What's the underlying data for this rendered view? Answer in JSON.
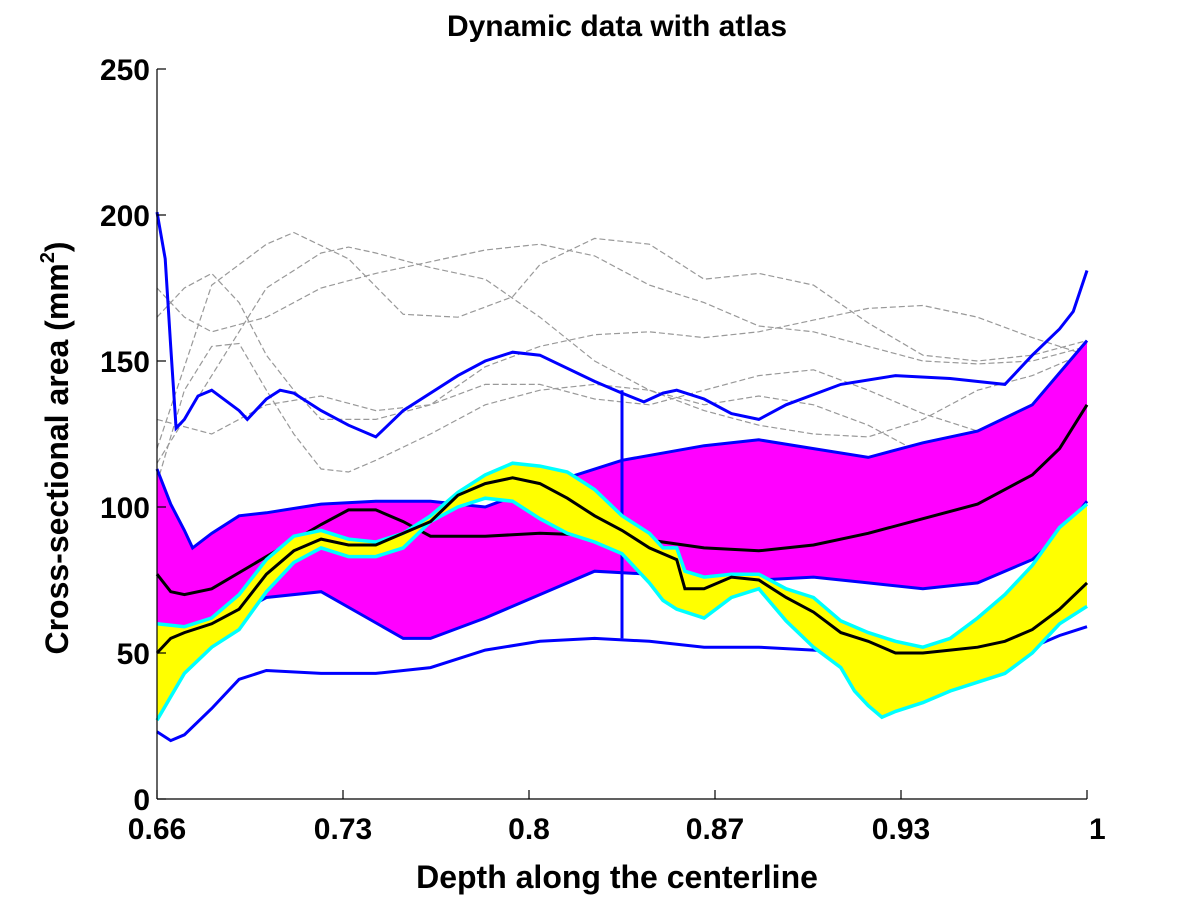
{
  "chart_data": {
    "type": "line",
    "title": "Dynamic data with atlas",
    "xlabel": "Depth along the centerline",
    "ylabel_main": "Cross-sectional area (mm",
    "ylabel_sup": "2",
    "ylabel_close": ")",
    "xlim": [
      0.66,
      1.0
    ],
    "ylim": [
      0,
      250
    ],
    "x_ticks": [
      0.66,
      0.728,
      0.796,
      0.864,
      0.932,
      1.0
    ],
    "x_tick_labels": [
      "0.66",
      "0.73",
      "0.8",
      "0.87",
      "0.93",
      "1"
    ],
    "y_ticks": [
      0,
      50,
      100,
      150,
      200,
      250
    ],
    "y_tick_labels": [
      "0",
      "50",
      "100",
      "150",
      "200",
      "250"
    ],
    "colors": {
      "atlas_band": "#ff00ff",
      "atlas_band_edge": "#0000ff",
      "atlas_envelope": "#0000ff",
      "atlas_mean": "#000000",
      "dynamic_band": "#ffff00",
      "dynamic_band_edge": "#00ffff",
      "dynamic_mean": "#000000",
      "gray_curves": "#999999"
    },
    "atlas_band": {
      "upper": [
        [
          0.66,
          113
        ],
        [
          0.665,
          101
        ],
        [
          0.67,
          92
        ],
        [
          0.673,
          86
        ],
        [
          0.68,
          91
        ],
        [
          0.69,
          97
        ],
        [
          0.7,
          98
        ],
        [
          0.72,
          101
        ],
        [
          0.74,
          102
        ],
        [
          0.76,
          102
        ],
        [
          0.78,
          100
        ],
        [
          0.8,
          107
        ],
        [
          0.83,
          116
        ],
        [
          0.86,
          121
        ],
        [
          0.88,
          123
        ],
        [
          0.9,
          120
        ],
        [
          0.92,
          117
        ],
        [
          0.94,
          122
        ],
        [
          0.96,
          126
        ],
        [
          0.98,
          135
        ],
        [
          1.0,
          157
        ]
      ],
      "lower": [
        [
          0.66,
          47
        ],
        [
          0.665,
          45
        ],
        [
          0.67,
          48
        ],
        [
          0.68,
          55
        ],
        [
          0.69,
          64
        ],
        [
          0.7,
          69
        ],
        [
          0.72,
          71
        ],
        [
          0.735,
          63
        ],
        [
          0.75,
          55
        ],
        [
          0.76,
          55
        ],
        [
          0.78,
          62
        ],
        [
          0.8,
          70
        ],
        [
          0.82,
          78
        ],
        [
          0.84,
          77
        ],
        [
          0.86,
          76
        ],
        [
          0.88,
          75
        ],
        [
          0.9,
          76
        ],
        [
          0.92,
          74
        ],
        [
          0.94,
          72
        ],
        [
          0.96,
          74
        ],
        [
          0.98,
          82
        ],
        [
          0.99,
          90
        ],
        [
          1.0,
          102
        ]
      ]
    },
    "atlas_mean": [
      [
        0.66,
        77
      ],
      [
        0.665,
        71
      ],
      [
        0.67,
        70
      ],
      [
        0.68,
        72
      ],
      [
        0.7,
        83
      ],
      [
        0.72,
        94
      ],
      [
        0.73,
        99
      ],
      [
        0.74,
        99
      ],
      [
        0.75,
        95
      ],
      [
        0.76,
        90
      ],
      [
        0.78,
        90
      ],
      [
        0.8,
        91
      ],
      [
        0.83,
        90
      ],
      [
        0.86,
        86
      ],
      [
        0.88,
        85
      ],
      [
        0.9,
        87
      ],
      [
        0.92,
        91
      ],
      [
        0.94,
        96
      ],
      [
        0.96,
        101
      ],
      [
        0.98,
        111
      ],
      [
        0.99,
        120
      ],
      [
        1.0,
        135
      ]
    ],
    "atlas_envelope_upper": [
      [
        0.66,
        201
      ],
      [
        0.663,
        185
      ],
      [
        0.665,
        155
      ],
      [
        0.667,
        127
      ],
      [
        0.67,
        130
      ],
      [
        0.675,
        138
      ],
      [
        0.68,
        140
      ],
      [
        0.69,
        133
      ],
      [
        0.693,
        130
      ],
      [
        0.7,
        137
      ],
      [
        0.705,
        140
      ],
      [
        0.71,
        139
      ],
      [
        0.72,
        133
      ],
      [
        0.73,
        128
      ],
      [
        0.74,
        124
      ],
      [
        0.75,
        133
      ],
      [
        0.77,
        145
      ],
      [
        0.78,
        150
      ],
      [
        0.79,
        153
      ],
      [
        0.8,
        152
      ],
      [
        0.82,
        143
      ],
      [
        0.83,
        139
      ],
      [
        0.838,
        136
      ],
      [
        0.845,
        139
      ],
      [
        0.85,
        140
      ],
      [
        0.86,
        137
      ],
      [
        0.87,
        132
      ],
      [
        0.88,
        130
      ],
      [
        0.89,
        135
      ],
      [
        0.91,
        142
      ],
      [
        0.93,
        145
      ],
      [
        0.95,
        144
      ],
      [
        0.97,
        142
      ],
      [
        0.98,
        152
      ],
      [
        0.99,
        161
      ],
      [
        0.995,
        167
      ],
      [
        1.0,
        181
      ]
    ],
    "atlas_envelope_lower": [
      [
        0.66,
        23
      ],
      [
        0.665,
        20
      ],
      [
        0.67,
        22
      ],
      [
        0.68,
        31
      ],
      [
        0.69,
        41
      ],
      [
        0.7,
        44
      ],
      [
        0.72,
        43
      ],
      [
        0.74,
        43
      ],
      [
        0.76,
        45
      ],
      [
        0.78,
        51
      ],
      [
        0.8,
        54
      ],
      [
        0.82,
        55
      ],
      [
        0.84,
        54
      ],
      [
        0.86,
        52
      ],
      [
        0.88,
        52
      ],
      [
        0.9,
        51
      ],
      [
        0.92,
        50
      ],
      [
        0.94,
        50
      ],
      [
        0.96,
        50
      ],
      [
        0.98,
        52
      ],
      [
        0.99,
        56
      ],
      [
        1.0,
        59
      ]
    ],
    "marker_line": {
      "x": 0.83,
      "y_low": 55,
      "y_high": 140
    },
    "dynamic_band": {
      "upper": [
        [
          0.66,
          60
        ],
        [
          0.67,
          59
        ],
        [
          0.68,
          62
        ],
        [
          0.69,
          70
        ],
        [
          0.7,
          82
        ],
        [
          0.71,
          90
        ],
        [
          0.72,
          92
        ],
        [
          0.73,
          89
        ],
        [
          0.74,
          88
        ],
        [
          0.75,
          91
        ],
        [
          0.76,
          97
        ],
        [
          0.77,
          105
        ],
        [
          0.78,
          111
        ],
        [
          0.79,
          115
        ],
        [
          0.8,
          114
        ],
        [
          0.81,
          112
        ],
        [
          0.82,
          106
        ],
        [
          0.83,
          97
        ],
        [
          0.84,
          91
        ],
        [
          0.845,
          86
        ],
        [
          0.85,
          86
        ],
        [
          0.853,
          78
        ],
        [
          0.86,
          76
        ],
        [
          0.87,
          77
        ],
        [
          0.88,
          77
        ],
        [
          0.89,
          72
        ],
        [
          0.9,
          69
        ],
        [
          0.91,
          61
        ],
        [
          0.92,
          57
        ],
        [
          0.93,
          54
        ],
        [
          0.94,
          52
        ],
        [
          0.95,
          55
        ],
        [
          0.96,
          62
        ],
        [
          0.97,
          70
        ],
        [
          0.98,
          80
        ],
        [
          0.99,
          93
        ],
        [
          1.0,
          101
        ]
      ],
      "lower": [
        [
          0.66,
          27
        ],
        [
          0.665,
          35
        ],
        [
          0.67,
          43
        ],
        [
          0.68,
          52
        ],
        [
          0.69,
          58
        ],
        [
          0.7,
          71
        ],
        [
          0.71,
          81
        ],
        [
          0.72,
          86
        ],
        [
          0.73,
          83
        ],
        [
          0.74,
          83
        ],
        [
          0.75,
          86
        ],
        [
          0.76,
          95
        ],
        [
          0.77,
          100
        ],
        [
          0.78,
          103
        ],
        [
          0.79,
          102
        ],
        [
          0.8,
          96
        ],
        [
          0.81,
          91
        ],
        [
          0.82,
          88
        ],
        [
          0.83,
          84
        ],
        [
          0.835,
          79
        ],
        [
          0.84,
          74
        ],
        [
          0.845,
          68
        ],
        [
          0.85,
          65
        ],
        [
          0.86,
          62
        ],
        [
          0.87,
          69
        ],
        [
          0.88,
          72
        ],
        [
          0.89,
          61
        ],
        [
          0.9,
          52
        ],
        [
          0.91,
          45
        ],
        [
          0.915,
          37
        ],
        [
          0.92,
          32
        ],
        [
          0.925,
          28
        ],
        [
          0.93,
          30
        ],
        [
          0.94,
          33
        ],
        [
          0.95,
          37
        ],
        [
          0.96,
          40
        ],
        [
          0.97,
          43
        ],
        [
          0.98,
          50
        ],
        [
          0.99,
          60
        ],
        [
          1.0,
          66
        ]
      ]
    },
    "dynamic_mean": [
      [
        0.66,
        50
      ],
      [
        0.665,
        55
      ],
      [
        0.67,
        57
      ],
      [
        0.68,
        60
      ],
      [
        0.69,
        65
      ],
      [
        0.7,
        77
      ],
      [
        0.71,
        85
      ],
      [
        0.72,
        89
      ],
      [
        0.73,
        87
      ],
      [
        0.74,
        87
      ],
      [
        0.75,
        91
      ],
      [
        0.76,
        95
      ],
      [
        0.77,
        104
      ],
      [
        0.78,
        108
      ],
      [
        0.79,
        110
      ],
      [
        0.8,
        108
      ],
      [
        0.81,
        103
      ],
      [
        0.82,
        97
      ],
      [
        0.83,
        92
      ],
      [
        0.84,
        86
      ],
      [
        0.85,
        82
      ],
      [
        0.853,
        72
      ],
      [
        0.86,
        72
      ],
      [
        0.87,
        76
      ],
      [
        0.88,
        75
      ],
      [
        0.89,
        69
      ],
      [
        0.9,
        64
      ],
      [
        0.91,
        57
      ],
      [
        0.92,
        54
      ],
      [
        0.93,
        50
      ],
      [
        0.94,
        50
      ],
      [
        0.95,
        51
      ],
      [
        0.96,
        52
      ],
      [
        0.97,
        54
      ],
      [
        0.98,
        58
      ],
      [
        0.99,
        65
      ],
      [
        1.0,
        74
      ]
    ],
    "gray_curves": [
      [
        [
          0.66,
          120
        ],
        [
          0.68,
          176
        ],
        [
          0.7,
          190
        ],
        [
          0.71,
          194
        ],
        [
          0.73,
          185
        ],
        [
          0.75,
          166
        ],
        [
          0.77,
          165
        ],
        [
          0.79,
          172
        ],
        [
          0.8,
          183
        ],
        [
          0.82,
          192
        ],
        [
          0.84,
          190
        ],
        [
          0.86,
          178
        ],
        [
          0.88,
          180
        ],
        [
          0.9,
          176
        ],
        [
          0.92,
          163
        ],
        [
          0.94,
          152
        ],
        [
          0.96,
          150
        ],
        [
          0.98,
          152
        ],
        [
          1.0,
          157
        ]
      ],
      [
        [
          0.66,
          165
        ],
        [
          0.67,
          175
        ],
        [
          0.68,
          180
        ],
        [
          0.69,
          170
        ],
        [
          0.7,
          152
        ],
        [
          0.71,
          140
        ],
        [
          0.72,
          130
        ],
        [
          0.74,
          130
        ],
        [
          0.76,
          135
        ],
        [
          0.78,
          142
        ],
        [
          0.8,
          142
        ],
        [
          0.82,
          137
        ],
        [
          0.84,
          135
        ],
        [
          0.86,
          140
        ],
        [
          0.88,
          145
        ],
        [
          0.9,
          147
        ],
        [
          0.92,
          140
        ],
        [
          0.94,
          132
        ],
        [
          0.96,
          126
        ],
        [
          0.98,
          130
        ],
        [
          1.0,
          156
        ]
      ],
      [
        [
          0.66,
          108
        ],
        [
          0.67,
          140
        ],
        [
          0.68,
          155
        ],
        [
          0.69,
          156
        ],
        [
          0.7,
          140
        ],
        [
          0.71,
          125
        ],
        [
          0.72,
          113
        ],
        [
          0.73,
          112
        ],
        [
          0.74,
          116
        ],
        [
          0.76,
          125
        ],
        [
          0.78,
          135
        ],
        [
          0.8,
          140
        ],
        [
          0.82,
          142
        ],
        [
          0.84,
          140
        ],
        [
          0.86,
          133
        ],
        [
          0.88,
          128
        ],
        [
          0.9,
          125
        ],
        [
          0.92,
          124
        ],
        [
          0.94,
          130
        ],
        [
          0.96,
          140
        ],
        [
          0.98,
          145
        ],
        [
          1.0,
          153
        ]
      ],
      [
        [
          0.66,
          115
        ],
        [
          0.68,
          145
        ],
        [
          0.7,
          175
        ],
        [
          0.72,
          187
        ],
        [
          0.73,
          189
        ],
        [
          0.74,
          187
        ],
        [
          0.76,
          182
        ],
        [
          0.78,
          178
        ],
        [
          0.8,
          165
        ],
        [
          0.82,
          150
        ],
        [
          0.84,
          140
        ],
        [
          0.86,
          135
        ],
        [
          0.88,
          138
        ],
        [
          0.9,
          135
        ],
        [
          0.92,
          128
        ],
        [
          0.94,
          118
        ],
        [
          0.96,
          121
        ],
        [
          0.98,
          130
        ],
        [
          1.0,
          140
        ]
      ],
      [
        [
          0.66,
          130
        ],
        [
          0.68,
          125
        ],
        [
          0.7,
          135
        ],
        [
          0.72,
          138
        ],
        [
          0.74,
          133
        ],
        [
          0.76,
          135
        ],
        [
          0.78,
          148
        ],
        [
          0.8,
          155
        ],
        [
          0.82,
          159
        ],
        [
          0.84,
          160
        ],
        [
          0.86,
          158
        ],
        [
          0.88,
          160
        ],
        [
          0.9,
          164
        ],
        [
          0.92,
          168
        ],
        [
          0.94,
          169
        ],
        [
          0.96,
          165
        ],
        [
          0.98,
          158
        ],
        [
          1.0,
          152
        ]
      ],
      [
        [
          0.66,
          175
        ],
        [
          0.67,
          165
        ],
        [
          0.68,
          160
        ],
        [
          0.7,
          165
        ],
        [
          0.72,
          175
        ],
        [
          0.74,
          180
        ],
        [
          0.76,
          184
        ],
        [
          0.78,
          188
        ],
        [
          0.8,
          190
        ],
        [
          0.82,
          186
        ],
        [
          0.84,
          176
        ],
        [
          0.86,
          170
        ],
        [
          0.88,
          162
        ],
        [
          0.9,
          160
        ],
        [
          0.92,
          155
        ],
        [
          0.94,
          150
        ],
        [
          0.96,
          149
        ],
        [
          0.98,
          150
        ],
        [
          1.0,
          155
        ]
      ]
    ]
  }
}
